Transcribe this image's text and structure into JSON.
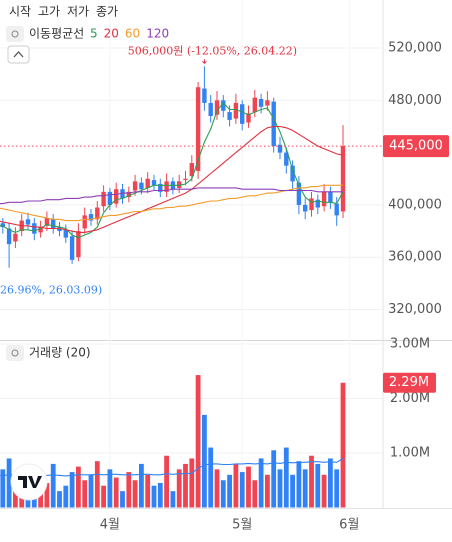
{
  "toolbar": {
    "ohlc_labels": [
      "시작",
      "고가",
      "저가",
      "종가"
    ]
  },
  "chart_data": [
    {
      "type": "candlestick",
      "legend_title": "이동평균선",
      "up_color": "#f04452",
      "down_color": "#3182f6",
      "categories": [
        null,
        null,
        null,
        null,
        null,
        null,
        null,
        null,
        null,
        null,
        null,
        null,
        null,
        null,
        null,
        null,
        null,
        null,
        "4월",
        null,
        null,
        null,
        null,
        null,
        null,
        null,
        null,
        null,
        null,
        null,
        null,
        null,
        null,
        null,
        null,
        null,
        null,
        null,
        null,
        "5월",
        null,
        null,
        null,
        null,
        null,
        null,
        null,
        null,
        null,
        null,
        null,
        null,
        null,
        null,
        null,
        null,
        "6월"
      ],
      "open": [
        388000,
        386000,
        382000,
        372000,
        380000,
        389000,
        386000,
        379000,
        384000,
        389000,
        383000,
        381000,
        376000,
        360000,
        382000,
        393000,
        389000,
        399000,
        410000,
        401000,
        412000,
        406000,
        411000,
        417000,
        413000,
        419000,
        416000,
        410000,
        418000,
        413000,
        419000,
        422000,
        426000,
        489000,
        478000,
        469000,
        480000,
        471000,
        466000,
        477000,
        463000,
        471000,
        481000,
        476000,
        479000,
        446000,
        440000,
        430000,
        417000,
        400000,
        396000,
        404000,
        399000,
        410000,
        401000,
        395000,
        null
      ],
      "high": [
        392000,
        390000,
        386000,
        383000,
        393000,
        394000,
        390000,
        388000,
        395000,
        393000,
        387000,
        385000,
        380000,
        386000,
        398000,
        397000,
        403000,
        415000,
        413000,
        417000,
        416000,
        414000,
        423000,
        421000,
        425000,
        423000,
        420000,
        424000,
        421000,
        423000,
        426000,
        438000,
        494000,
        506000,
        484000,
        487000,
        484000,
        476000,
        485000,
        480000,
        476000,
        488000,
        485000,
        487000,
        482000,
        452000,
        444000,
        434000,
        422000,
        405000,
        410000,
        408000,
        416000,
        414000,
        406000,
        461000,
        null
      ],
      "low": [
        381000,
        378000,
        352000,
        367000,
        376000,
        381000,
        373000,
        375000,
        380000,
        378000,
        376000,
        371000,
        355000,
        357000,
        378000,
        384000,
        385000,
        395000,
        396000,
        398000,
        401000,
        402000,
        407000,
        408000,
        409000,
        411000,
        406000,
        406000,
        408000,
        409000,
        415000,
        418000,
        420000,
        472000,
        463000,
        465000,
        467000,
        460000,
        462000,
        457000,
        459000,
        467000,
        470000,
        472000,
        440000,
        435000,
        424000,
        412000,
        393000,
        389000,
        391000,
        393000,
        395000,
        397000,
        384000,
        390000,
        null
      ],
      "close": [
        385000,
        383000,
        370000,
        378000,
        388000,
        385000,
        378000,
        383000,
        390000,
        382000,
        380000,
        375000,
        358000,
        380000,
        392000,
        388000,
        398000,
        410000,
        400000,
        412000,
        405000,
        410000,
        418000,
        412000,
        420000,
        415000,
        410000,
        418000,
        412000,
        418000,
        420000,
        432000,
        490000,
        478000,
        468000,
        480000,
        472000,
        465000,
        478000,
        462000,
        470000,
        482000,
        475000,
        480000,
        445000,
        440000,
        430000,
        418000,
        400000,
        395000,
        405000,
        398000,
        410000,
        402000,
        392000,
        445000,
        null
      ],
      "series": [
        {
          "name": "5",
          "color": "#2e9d4f",
          "values": [
            384000,
            384000,
            381000,
            379000,
            381000,
            381000,
            380000,
            382000,
            385000,
            384000,
            383000,
            382000,
            377000,
            375000,
            377000,
            379000,
            383000,
            394000,
            400000,
            404000,
            405000,
            407000,
            409000,
            411000,
            413000,
            415000,
            415000,
            415000,
            415000,
            415000,
            416000,
            420000,
            434000,
            448000,
            458000,
            472000,
            478000,
            473000,
            473000,
            471000,
            469000,
            471000,
            473000,
            474000,
            466000,
            456000,
            443000,
            427000,
            415000,
            406000,
            402000,
            403000,
            402000,
            402000,
            401000,
            410000,
            null
          ]
        },
        {
          "name": "20",
          "color": "#e0313f",
          "values": [
            388000,
            387000,
            386000,
            385000,
            384000,
            384000,
            383000,
            383000,
            382000,
            382000,
            382000,
            381000,
            380000,
            379000,
            379000,
            380000,
            381000,
            383000,
            385000,
            387000,
            389000,
            391000,
            393000,
            395000,
            397000,
            399000,
            401000,
            403000,
            405000,
            407000,
            409000,
            412000,
            416000,
            420000,
            424000,
            428000,
            432000,
            436000,
            440000,
            444000,
            448000,
            452000,
            456000,
            459000,
            460000,
            460000,
            459000,
            457000,
            454000,
            451000,
            448000,
            445000,
            443000,
            441000,
            439000,
            438000,
            null
          ]
        },
        {
          "name": "60",
          "color": "#f39c2a",
          "values": [
            398000,
            397000,
            396000,
            395000,
            394000,
            393000,
            392000,
            391000,
            390000,
            389000,
            389000,
            388000,
            388000,
            388000,
            389000,
            389000,
            390000,
            391000,
            392000,
            392000,
            393000,
            394000,
            395000,
            395000,
            396000,
            397000,
            397000,
            398000,
            398000,
            399000,
            399000,
            400000,
            401000,
            402000,
            403000,
            403000,
            404000,
            405000,
            405000,
            406000,
            407000,
            407000,
            408000,
            409000,
            409000,
            410000,
            411000,
            412000,
            413000,
            413000,
            414000,
            414000,
            415000,
            415000,
            415000,
            415000,
            null
          ]
        },
        {
          "name": "120",
          "color": "#8e3fb5",
          "values": [
            401000,
            401000,
            402000,
            402000,
            402000,
            403000,
            403000,
            403000,
            404000,
            404000,
            404000,
            405000,
            405000,
            405000,
            406000,
            406000,
            407000,
            407000,
            408000,
            408000,
            409000,
            409000,
            410000,
            410000,
            410000,
            411000,
            411000,
            411000,
            412000,
            412000,
            412000,
            412000,
            413000,
            413000,
            413000,
            413000,
            413000,
            413000,
            413000,
            412000,
            412000,
            412000,
            412000,
            412000,
            412000,
            411000,
            411000,
            411000,
            411000,
            411000,
            411000,
            410000,
            410000,
            410000,
            410000,
            410000,
            null
          ]
        }
      ],
      "ylim": [
        296700,
        556700
      ],
      "yticks": [
        {
          "value": 320000,
          "label": "320,000"
        },
        {
          "value": 360000,
          "label": "360,000"
        },
        {
          "value": 400000,
          "label": "400,000"
        },
        {
          "value": 480000,
          "label": "480,000"
        },
        {
          "value": 520000,
          "label": "520,000"
        }
      ],
      "current_price": {
        "value": 445000,
        "label": "445,000"
      },
      "max_label": "506,000원 (-12.05%, 26.04.22)",
      "min_label": "26.96%, 26.03.09)"
    },
    {
      "type": "bar",
      "title": "거래량 (20)",
      "values": [
        450000,
        700000,
        900000,
        500000,
        400000,
        350000,
        600000,
        500000,
        450000,
        800000,
        300000,
        400000,
        650000,
        750000,
        500000,
        600000,
        850000,
        400000,
        700000,
        550000,
        300000,
        650000,
        500000,
        800000,
        600000,
        400000,
        450000,
        950000,
        300000,
        700000,
        800000,
        900000,
        2430000,
        1700000,
        1100000,
        700000,
        500000,
        600000,
        800000,
        650000,
        750000,
        500000,
        900000,
        600000,
        1050000,
        700000,
        1100000,
        600000,
        850000,
        700000,
        950000,
        800000,
        600000,
        900000,
        700000,
        2290000,
        null
      ],
      "series": [
        {
          "color": "#3182f6",
          "values": [
            580000,
            590000,
            600000,
            600000,
            590000,
            580000,
            580000,
            590000,
            590000,
            600000,
            590000,
            580000,
            590000,
            600000,
            600000,
            600000,
            610000,
            600000,
            610000,
            610000,
            600000,
            600000,
            600000,
            610000,
            610000,
            600000,
            600000,
            620000,
            610000,
            620000,
            620000,
            630000,
            720000,
            780000,
            800000,
            800000,
            790000,
            790000,
            800000,
            800000,
            810000,
            800000,
            810000,
            800000,
            820000,
            810000,
            830000,
            820000,
            830000,
            830000,
            840000,
            840000,
            830000,
            840000,
            830000,
            900000,
            null
          ]
        }
      ],
      "ylim": [
        0,
        3010000
      ],
      "yticks": [
        {
          "value": 1000000,
          "label": "1.00M"
        },
        {
          "value": 2000000,
          "label": "2.00M"
        },
        {
          "value": 3000000,
          "label": "3.00M"
        }
      ],
      "current_value": {
        "value": 2290000,
        "label": "2.29M"
      }
    }
  ]
}
